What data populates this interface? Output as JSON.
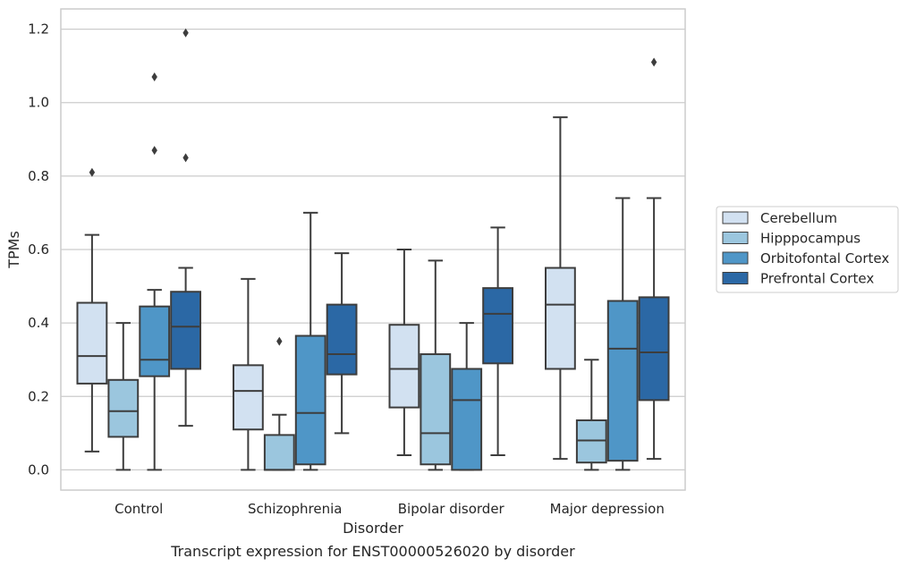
{
  "chart_data": {
    "type": "box",
    "caption": "Transcript expression for ENST00000526020 by disorder",
    "xlabel": "Disorder",
    "ylabel": "TPMs",
    "ylim": [
      -0.055,
      1.255
    ],
    "yticks": [
      0.0,
      0.2,
      0.4,
      0.6,
      0.8,
      1.0,
      1.2
    ],
    "ytick_labels": [
      "0.0",
      "0.2",
      "0.4",
      "0.6",
      "0.8",
      "1.0",
      "1.2"
    ],
    "grid": "horizontal",
    "legend_position": "right",
    "categories": [
      "Control",
      "Schizophrenia",
      "Bipolar disorder",
      "Major depression"
    ],
    "series": [
      {
        "name": "Cerebellum",
        "color": "#d2e1f1",
        "boxes": [
          {
            "whislo": 0.05,
            "q1": 0.235,
            "med": 0.31,
            "q3": 0.455,
            "whishi": 0.64,
            "fliers": [
              0.81
            ]
          },
          {
            "whislo": 0.0,
            "q1": 0.11,
            "med": 0.215,
            "q3": 0.285,
            "whishi": 0.52,
            "fliers": []
          },
          {
            "whislo": 0.04,
            "q1": 0.17,
            "med": 0.275,
            "q3": 0.395,
            "whishi": 0.6,
            "fliers": []
          },
          {
            "whislo": 0.03,
            "q1": 0.275,
            "med": 0.45,
            "q3": 0.55,
            "whishi": 0.96,
            "fliers": []
          }
        ]
      },
      {
        "name": "Hipppocampus",
        "color": "#9bc6de",
        "boxes": [
          {
            "whislo": 0.0,
            "q1": 0.09,
            "med": 0.16,
            "q3": 0.245,
            "whishi": 0.4,
            "fliers": []
          },
          {
            "whislo": 0.0,
            "q1": 0.0,
            "med": 0.0,
            "q3": 0.095,
            "whishi": 0.15,
            "fliers": [
              0.35
            ]
          },
          {
            "whislo": 0.0,
            "q1": 0.015,
            "med": 0.1,
            "q3": 0.315,
            "whishi": 0.57,
            "fliers": []
          },
          {
            "whislo": 0.0,
            "q1": 0.02,
            "med": 0.08,
            "q3": 0.135,
            "whishi": 0.3,
            "fliers": []
          }
        ]
      },
      {
        "name": "Orbitofontal Cortex",
        "color": "#4f96c7",
        "boxes": [
          {
            "whislo": 0.0,
            "q1": 0.255,
            "med": 0.3,
            "q3": 0.445,
            "whishi": 0.49,
            "fliers": [
              0.87,
              1.07
            ]
          },
          {
            "whislo": 0.0,
            "q1": 0.015,
            "med": 0.155,
            "q3": 0.365,
            "whishi": 0.7,
            "fliers": []
          },
          {
            "whislo": 0.0,
            "q1": 0.0,
            "med": 0.19,
            "q3": 0.275,
            "whishi": 0.4,
            "fliers": []
          },
          {
            "whislo": 0.0,
            "q1": 0.025,
            "med": 0.33,
            "q3": 0.46,
            "whishi": 0.74,
            "fliers": []
          }
        ]
      },
      {
        "name": "Prefrontal Cortex",
        "color": "#2b68a5",
        "boxes": [
          {
            "whislo": 0.12,
            "q1": 0.275,
            "med": 0.39,
            "q3": 0.485,
            "whishi": 0.55,
            "fliers": [
              0.85,
              1.19
            ]
          },
          {
            "whislo": 0.1,
            "q1": 0.26,
            "med": 0.315,
            "q3": 0.45,
            "whishi": 0.59,
            "fliers": []
          },
          {
            "whislo": 0.04,
            "q1": 0.29,
            "med": 0.425,
            "q3": 0.495,
            "whishi": 0.66,
            "fliers": []
          },
          {
            "whislo": 0.03,
            "q1": 0.19,
            "med": 0.32,
            "q3": 0.47,
            "whishi": 0.74,
            "fliers": [
              1.11
            ]
          }
        ]
      }
    ]
  }
}
